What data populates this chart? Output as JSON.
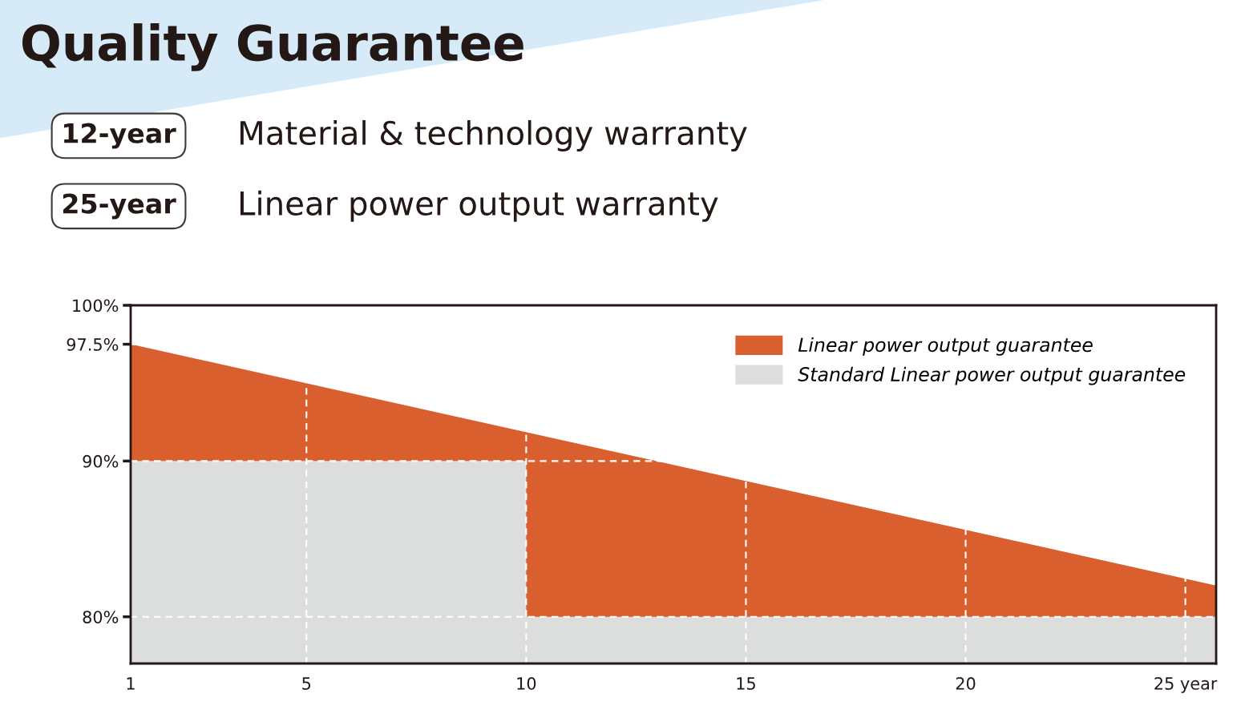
{
  "chart_data": {
    "type": "area",
    "title": "Quality Guarantee",
    "annotations": [
      "12-year",
      "Material & technology warranty",
      "25-year",
      "Linear power output warranty"
    ],
    "series": [
      {
        "name": "Linear power output guarantee",
        "color": "#d95f2e",
        "x": [
          1,
          25.7
        ],
        "values": [
          97.5,
          82
        ]
      },
      {
        "name": "Standard Linear power output guarantee",
        "color": "#dcdddd",
        "x": [
          1,
          10,
          10,
          25.7
        ],
        "values": [
          90,
          90,
          80,
          80
        ]
      }
    ],
    "xlim": [
      1,
      25.7
    ],
    "xticks": [
      1,
      5,
      10,
      15,
      20,
      {
        "value": 25,
        "label": "25 year"
      }
    ],
    "ylim": [
      77,
      100
    ],
    "yticks": [
      {
        "value": 80,
        "label": "80%"
      },
      {
        "value": 90,
        "label": "90%"
      },
      {
        "value": 97.5,
        "label": "97.5%"
      },
      {
        "value": 100,
        "label": "100%"
      }
    ],
    "grid": true,
    "legend": "top right"
  }
}
